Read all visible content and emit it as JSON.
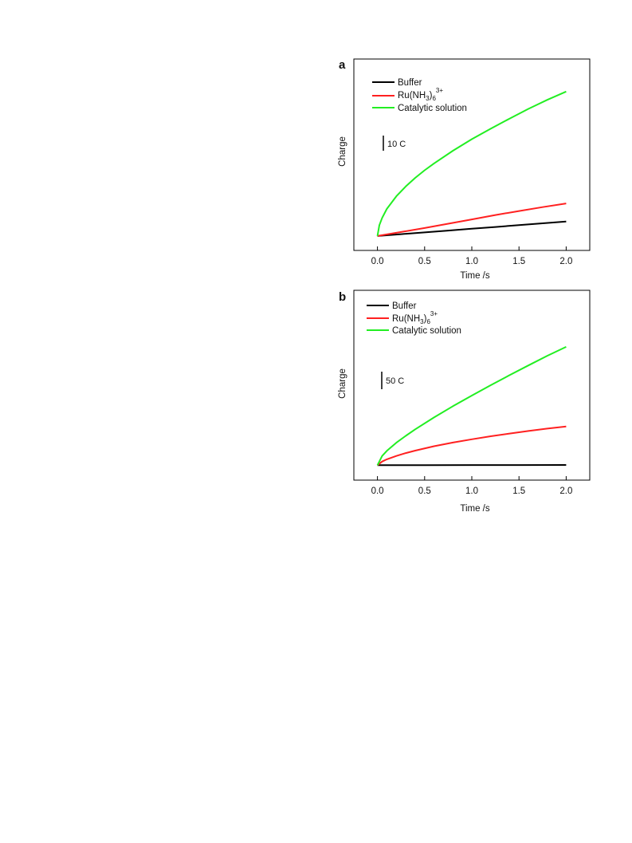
{
  "chart_data": [
    {
      "panel": "a",
      "type": "line",
      "xlabel": "Time /s",
      "ylabel": "Charge",
      "xlim": [
        -0.25,
        2.25
      ],
      "xticks": [
        "0.0",
        "0.5",
        "1.0",
        "1.5",
        "2.0"
      ],
      "xtick_values": [
        0.0,
        0.5,
        1.0,
        1.5,
        2.0
      ],
      "ylim": [
        -4,
        49
      ],
      "scale_bar": {
        "label": "10 C",
        "value": 10
      },
      "legend": {
        "placement": "top-left",
        "items": [
          {
            "label": "Buffer"
          },
          {
            "label_main": "Ru(NH",
            "label_sub1": "3",
            "label_mid": ")",
            "label_sub2": "6",
            "label_sup": "3+"
          },
          {
            "label": "Catalytic solution"
          }
        ]
      },
      "series": [
        {
          "name": "Buffer",
          "color": "#000000",
          "x": [
            0,
            0.25,
            0.5,
            0.75,
            1.0,
            1.25,
            1.5,
            1.75,
            2.0
          ],
          "y": [
            0,
            0.5,
            1.0,
            1.5,
            2.0,
            2.5,
            3.0,
            3.5,
            4.0
          ]
        },
        {
          "name": "Ru(NH3)6 3+",
          "color": "#ff2020",
          "x": [
            0,
            0.25,
            0.5,
            0.75,
            1.0,
            1.25,
            1.5,
            1.75,
            2.0
          ],
          "y": [
            0,
            1.1,
            2.2,
            3.4,
            4.6,
            5.8,
            6.9,
            8.0,
            9.0
          ]
        },
        {
          "name": "Catalytic solution",
          "color": "#22ee22",
          "x": [
            0,
            0.02,
            0.05,
            0.1,
            0.2,
            0.3,
            0.4,
            0.5,
            0.6,
            0.8,
            1.0,
            1.2,
            1.4,
            1.6,
            1.8,
            2.0
          ],
          "y": [
            0,
            3.0,
            5.0,
            7.5,
            11.0,
            13.7,
            16.1,
            18.2,
            20.1,
            23.6,
            26.8,
            29.7,
            32.5,
            35.2,
            37.7,
            40.0
          ]
        }
      ]
    },
    {
      "panel": "b",
      "type": "line",
      "xlabel": "Time /s",
      "ylabel": "Charge",
      "xlim": [
        -0.25,
        2.25
      ],
      "xticks": [
        "0.0",
        "0.5",
        "1.0",
        "1.5",
        "2.0"
      ],
      "xtick_values": [
        0.0,
        0.5,
        1.0,
        1.5,
        2.0
      ],
      "ylim": [
        -20,
        235
      ],
      "scale_bar": {
        "label": "50 C",
        "value": 50
      },
      "legend": {
        "placement": "top-left",
        "items": [
          {
            "label": "Buffer"
          },
          {
            "label_main": "Ru(NH",
            "label_sub1": "3",
            "label_mid": ")",
            "label_sub2": "6",
            "label_sup": "3+"
          },
          {
            "label": "Catalytic solution"
          }
        ]
      },
      "series": [
        {
          "name": "Buffer",
          "color": "#000000",
          "x": [
            0,
            0.5,
            1.0,
            1.5,
            2.0
          ],
          "y": [
            0,
            0.1,
            0.2,
            0.3,
            0.4
          ]
        },
        {
          "name": "Ru(NH3)6 3+",
          "color": "#ff2020",
          "x": [
            0,
            0.05,
            0.1,
            0.2,
            0.3,
            0.4,
            0.6,
            0.8,
            1.0,
            1.2,
            1.4,
            1.6,
            1.8,
            2.0
          ],
          "y": [
            0,
            5.0,
            8.0,
            12.5,
            16.3,
            19.6,
            25.5,
            30.5,
            34.9,
            38.9,
            42.6,
            46.0,
            49.2,
            52.0
          ]
        },
        {
          "name": "Catalytic solution",
          "color": "#22ee22",
          "x": [
            0,
            0.05,
            0.1,
            0.2,
            0.3,
            0.4,
            0.6,
            0.8,
            1.0,
            1.2,
            1.4,
            1.6,
            1.8,
            2.0
          ],
          "y": [
            0,
            12.5,
            19.3,
            30.2,
            39.5,
            48.2,
            64.2,
            79.3,
            93.6,
            107.5,
            121.0,
            134.1,
            147.0,
            159.0
          ]
        }
      ]
    }
  ]
}
